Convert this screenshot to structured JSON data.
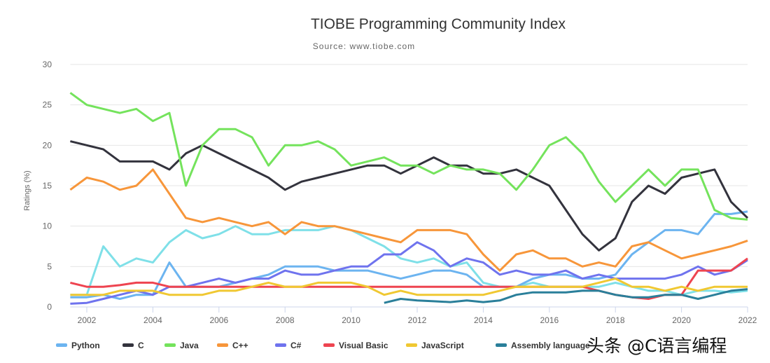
{
  "chart_data": {
    "type": "line",
    "title": "TIOBE Programming Community Index",
    "subtitle": "Source: www.tiobe.com",
    "ylabel": "Ratings (%)",
    "xlabel": "",
    "ylim": [
      0,
      30
    ],
    "xlim": [
      2001.5,
      2022
    ],
    "yticks": [
      "0",
      "5",
      "10",
      "15",
      "20",
      "25",
      "30"
    ],
    "xticks": [
      "2002",
      "2004",
      "2006",
      "2008",
      "2010",
      "2012",
      "2014",
      "2016",
      "2018",
      "2020",
      "2022"
    ],
    "grid": "horizontal",
    "legend": "bottom",
    "x": [
      2001.5,
      2002,
      2002.5,
      2003,
      2003.5,
      2004,
      2004.5,
      2005,
      2005.5,
      2006,
      2006.5,
      2007,
      2007.5,
      2008,
      2008.5,
      2009,
      2009.5,
      2010,
      2010.5,
      2011,
      2011.5,
      2012,
      2012.5,
      2013,
      2013.5,
      2014,
      2014.5,
      2015,
      2015.5,
      2016,
      2016.5,
      2017,
      2017.5,
      2018,
      2018.5,
      2019,
      2019.5,
      2020,
      2020.5,
      2021,
      2021.5,
      2022
    ],
    "series": [
      {
        "name": "",
        "color": "#7fe0e8",
        "values": [
          1.5,
          1.5,
          7.5,
          5,
          6,
          5.5,
          8,
          9.5,
          8.5,
          9,
          10,
          9,
          9,
          9.5,
          9.5,
          9.5,
          10,
          9.5,
          8.5,
          7.5,
          6,
          5.5,
          6,
          5,
          5.5,
          3,
          2.5,
          2.5,
          3,
          2.5,
          2.5,
          2.5,
          2.5,
          3,
          2.5,
          2,
          2,
          1.5,
          2,
          2,
          1.8,
          2
        ]
      },
      {
        "name": "Python",
        "color": "#6cb4f0",
        "values": [
          1.2,
          1.2,
          1.5,
          1,
          1.5,
          1.5,
          5.5,
          2.5,
          2.5,
          2.5,
          3,
          3.5,
          4,
          5,
          5,
          5,
          4.5,
          4.5,
          4.5,
          4,
          3.5,
          4,
          4.5,
          4.5,
          4,
          2.5,
          2.5,
          2.5,
          3.5,
          4,
          4,
          3.5,
          3.5,
          4,
          6.5,
          8,
          9.5,
          9.5,
          9,
          11.5,
          11.5,
          11.8
        ]
      },
      {
        "name": "C",
        "color": "#33333d",
        "values": [
          20.5,
          20,
          19.5,
          18,
          18,
          18,
          17,
          19,
          20,
          19,
          18,
          17,
          16,
          14.5,
          15.5,
          16,
          16.5,
          17,
          17.5,
          17.5,
          16.5,
          17.5,
          18.5,
          17.5,
          17.5,
          16.5,
          16.5,
          17,
          16,
          15,
          12,
          9,
          7,
          8.5,
          13,
          15,
          14,
          16,
          16.5,
          17,
          13,
          11
        ]
      },
      {
        "name": "Java",
        "color": "#74e35c",
        "values": [
          26.5,
          25,
          24.5,
          24,
          24.5,
          23,
          24,
          15,
          20,
          22,
          22,
          21,
          17.5,
          20,
          20,
          20.5,
          19.5,
          17.5,
          18,
          18.5,
          17.5,
          17.5,
          16.5,
          17.5,
          17,
          17,
          16.5,
          14.5,
          17,
          20,
          21,
          19,
          15.5,
          13,
          15,
          17,
          15,
          17,
          17,
          12,
          11,
          10.8
        ]
      },
      {
        "name": "C++",
        "color": "#f7963a",
        "values": [
          14.5,
          16,
          15.5,
          14.5,
          15,
          17,
          14,
          11,
          10.5,
          11,
          10.5,
          10,
          10.5,
          9,
          10.5,
          10,
          10,
          9.5,
          9,
          8.5,
          8,
          9.5,
          9.5,
          9.5,
          9,
          6.5,
          4.5,
          6.5,
          7,
          6,
          6,
          5,
          5.5,
          5,
          7.5,
          8,
          7,
          6,
          6.5,
          7,
          7.5,
          8.2
        ]
      },
      {
        "name": "C#",
        "color": "#6f73ee",
        "values": [
          0.4,
          0.5,
          1,
          1.5,
          2,
          1.5,
          2.5,
          2.5,
          3,
          3.5,
          3,
          3.5,
          3.5,
          4.5,
          4,
          4,
          4.5,
          5,
          5,
          6.5,
          6.5,
          8,
          7,
          5,
          6,
          5.5,
          4,
          4.5,
          4,
          4,
          4.5,
          3.5,
          4,
          3.5,
          3.5,
          3.5,
          3.5,
          4,
          5,
          4,
          4.5,
          5.8
        ]
      },
      {
        "name": "Visual Basic",
        "color": "#ee4450",
        "values": [
          3,
          2.5,
          2.5,
          2.7,
          3,
          3,
          2.5,
          2.5,
          2.5,
          2.5,
          2.5,
          2.5,
          2.5,
          2.5,
          2.5,
          2.5,
          2.5,
          2.5,
          2.5,
          2.5,
          2.5,
          2.5,
          2.5,
          2.5,
          2.5,
          2.5,
          2.5,
          2.5,
          2.5,
          2.5,
          2.5,
          2.5,
          2,
          1.5,
          1.2,
          1,
          1.5,
          1.5,
          4.5,
          4.5,
          4.5,
          6
        ]
      },
      {
        "name": "JavaScript",
        "color": "#f0c832",
        "values": [
          1.5,
          1.5,
          1.5,
          2,
          2,
          2,
          1.5,
          1.5,
          1.5,
          2,
          2,
          2.5,
          3,
          2.5,
          2.5,
          3,
          3,
          3,
          2.5,
          1.5,
          2,
          1.5,
          1.5,
          1.5,
          1.5,
          1.5,
          2,
          2.5,
          2.5,
          2.5,
          2.5,
          2.5,
          3,
          3.5,
          2.5,
          2.5,
          2,
          2.5,
          2,
          2.5,
          2.5,
          2.5
        ]
      },
      {
        "name": "Assembly language",
        "color": "#2a7f9a",
        "values": [
          null,
          null,
          null,
          null,
          null,
          null,
          null,
          null,
          null,
          null,
          null,
          null,
          null,
          null,
          null,
          null,
          null,
          null,
          null,
          0.5,
          1,
          0.8,
          0.7,
          0.6,
          0.8,
          0.6,
          0.8,
          1.5,
          1.8,
          1.8,
          1.8,
          2,
          2,
          1.5,
          1.2,
          1.2,
          1.5,
          1.5,
          1,
          1.5,
          2,
          2.2
        ]
      }
    ]
  },
  "watermark": "头条 @C语言编程"
}
